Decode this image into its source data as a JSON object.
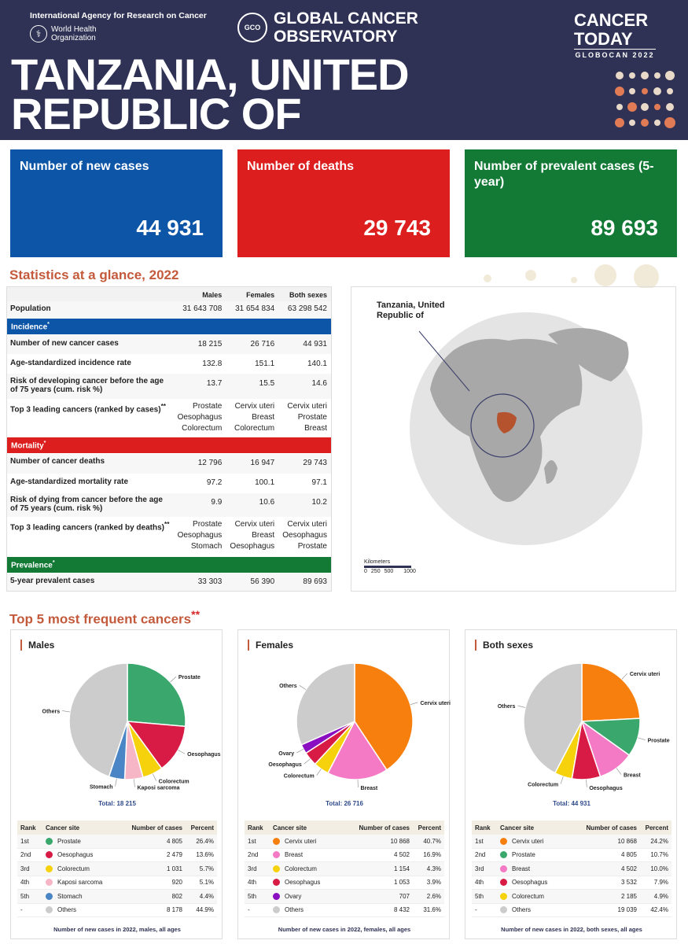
{
  "header": {
    "iarc": "International Agency for Research on Cancer",
    "who": "World Health Organization",
    "gco": "GLOBAL CANCER OBSERVATORY",
    "gco_logo": "GCO",
    "cancer_today": "CANCER TODAY",
    "globocan": "GLOBOCAN 2022",
    "country": "TANZANIA, UNITED REPUBLIC OF"
  },
  "kpis": [
    {
      "label": "Number of new cases",
      "value": "44 931",
      "color": "#0c55a7"
    },
    {
      "label": "Number of deaths",
      "value": "29 743",
      "color": "#dc1e1e"
    },
    {
      "label": "Number of prevalent cases (5-year)",
      "value": "89 693",
      "color": "#137a36"
    }
  ],
  "stats": {
    "title": "Statistics at a glance, 2022",
    "columns": [
      "Males",
      "Females",
      "Both sexes"
    ],
    "population": {
      "label": "Population",
      "values": [
        "31 643 708",
        "31 654 834",
        "63 298 542"
      ]
    },
    "incidence": {
      "label": "Incidence",
      "mark": "*",
      "rows": [
        {
          "label": "Number of new cancer cases",
          "values": [
            "18 215",
            "26 716",
            "44 931"
          ]
        },
        {
          "label": "Age-standardized incidence rate",
          "values": [
            "132.8",
            "151.1",
            "140.1"
          ]
        },
        {
          "label": "Risk of developing cancer before the age of 75 years (cum. risk %)",
          "values": [
            "13.7",
            "15.5",
            "14.6"
          ]
        },
        {
          "label": "Top 3 leading cancers (ranked by cases)",
          "mark": "**",
          "values": [
            [
              "Prostate",
              "Oesophagus",
              "Colorectum"
            ],
            [
              "Cervix uteri",
              "Breast",
              "Colorectum"
            ],
            [
              "Cervix uteri",
              "Prostate",
              "Breast"
            ]
          ]
        }
      ]
    },
    "mortality": {
      "label": "Mortality",
      "mark": "*",
      "rows": [
        {
          "label": "Number of cancer deaths",
          "values": [
            "12 796",
            "16 947",
            "29 743"
          ]
        },
        {
          "label": "Age-standardized mortality rate",
          "values": [
            "97.2",
            "100.1",
            "97.1"
          ]
        },
        {
          "label": "Risk of dying from cancer before the age of 75 years (cum. risk %)",
          "values": [
            "9.9",
            "10.6",
            "10.2"
          ]
        },
        {
          "label": "Top 3 leading cancers (ranked by deaths)",
          "mark": "**",
          "values": [
            [
              "Prostate",
              "Oesophagus",
              "Stomach"
            ],
            [
              "Cervix uteri",
              "Breast",
              "Oesophagus"
            ],
            [
              "Cervix uteri",
              "Oesophagus",
              "Prostate"
            ]
          ]
        }
      ]
    },
    "prevalence": {
      "label": "Prevalence",
      "mark": "*",
      "rows": [
        {
          "label": "5-year prevalent cases",
          "values": [
            "33 303",
            "56 390",
            "89 693"
          ]
        }
      ]
    },
    "colors": {
      "incidence": "#0c55a7",
      "mortality": "#dc1e1e",
      "prevalence": "#137a36"
    }
  },
  "map": {
    "label": "Tanzania, United Republic of",
    "scale_title": "Kilometers",
    "scale_ticks": [
      "0",
      "250",
      "500",
      "1000"
    ],
    "highlight_color": "#b5532f"
  },
  "top5": {
    "title": "Top 5 most frequent cancers",
    "mark": "**",
    "headers": [
      "Rank",
      "Cancer site",
      "Number of cases",
      "Percent"
    ]
  },
  "chart_data": [
    {
      "type": "pie",
      "title": "Males",
      "total_label": "Total: 18 215",
      "footnote": "Number of new cases in 2022, males, all ages",
      "labels": [
        "Prostate",
        "Oesophagus",
        "Colorectum",
        "Kaposi sarcoma",
        "Stomach",
        "Others"
      ],
      "ranks": [
        "1st",
        "2nd",
        "3rd",
        "4th",
        "5th",
        "-"
      ],
      "cases": [
        "4 805",
        "2 479",
        "1 031",
        "920",
        "802",
        "8 178"
      ],
      "percent_labels": [
        "26.4%",
        "13.6%",
        "5.7%",
        "5.1%",
        "4.4%",
        "44.9%"
      ],
      "values": [
        26.4,
        13.6,
        5.7,
        5.1,
        4.4,
        44.9
      ],
      "colors": [
        "#3aa76d",
        "#d81b45",
        "#f5d20c",
        "#f7b6c6",
        "#4a86c5",
        "#cccccc"
      ]
    },
    {
      "type": "pie",
      "title": "Females",
      "total_label": "Total: 26 716",
      "footnote": "Number of new cases in 2022, females, all ages",
      "labels": [
        "Cervix uteri",
        "Breast",
        "Colorectum",
        "Oesophagus",
        "Ovary",
        "Others"
      ],
      "ranks": [
        "1st",
        "2nd",
        "3rd",
        "4th",
        "5th",
        "-"
      ],
      "cases": [
        "10 868",
        "4 502",
        "1 154",
        "1 053",
        "707",
        "8 432"
      ],
      "percent_labels": [
        "40.7%",
        "16.9%",
        "4.3%",
        "3.9%",
        "2.6%",
        "31.6%"
      ],
      "values": [
        40.7,
        16.9,
        4.3,
        3.9,
        2.6,
        31.6
      ],
      "colors": [
        "#f77f0e",
        "#f47ac5",
        "#f5d20c",
        "#d81b45",
        "#8a0fc0",
        "#cccccc"
      ]
    },
    {
      "type": "pie",
      "title": "Both sexes",
      "total_label": "Total: 44 931",
      "footnote": "Number of new cases in 2022, both sexes, all ages",
      "labels": [
        "Cervix uteri",
        "Prostate",
        "Breast",
        "Oesophagus",
        "Colorectum",
        "Others"
      ],
      "ranks": [
        "1st",
        "2nd",
        "3rd",
        "4th",
        "5th",
        "-"
      ],
      "cases": [
        "10 868",
        "4 805",
        "4 502",
        "3 532",
        "2 185",
        "19 039"
      ],
      "percent_labels": [
        "24.2%",
        "10.7%",
        "10.0%",
        "7.9%",
        "4.9%",
        "42.4%"
      ],
      "values": [
        24.2,
        10.7,
        10.0,
        7.9,
        4.9,
        42.4
      ],
      "colors": [
        "#f77f0e",
        "#3aa76d",
        "#f47ac5",
        "#d81b45",
        "#f5d20c",
        "#cccccc"
      ]
    }
  ]
}
